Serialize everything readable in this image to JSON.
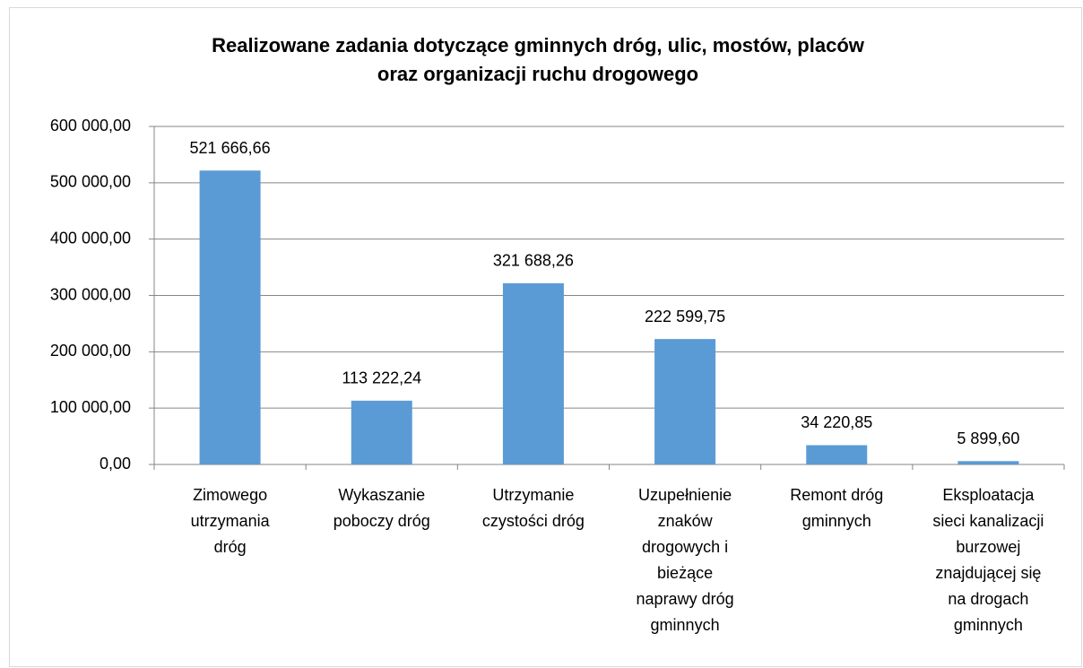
{
  "chart_data": {
    "type": "bar",
    "title": "Realizowane zadania dotyczące gminnych dróg, ulic, mostów, placów\noraz organizacji ruchu drogowego",
    "categories": [
      "Zimowego\nutrzymania\ndróg",
      "Wykaszanie\npoboczy dróg",
      "Utrzymanie\nczystości dróg",
      "Uzupełnienie\nznaków\ndrogowych i\nbieżące\nnaprawy dróg\ngminnych",
      "Remont dróg\ngminnych",
      "Eksploatacja\nsieci kanalizacji\nburzowej\nznajdującej się\nna drogach\ngminnych"
    ],
    "values": [
      521666.66,
      113222.24,
      321688.26,
      222599.75,
      34220.85,
      5899.6
    ],
    "value_labels": [
      "521 666,66",
      "113 222,24",
      "321 688,26",
      "222 599,75",
      "34 220,85",
      "5 899,60"
    ],
    "color": "#5b9bd5",
    "ylim": [
      0,
      600000
    ],
    "yticks": [
      {
        "value": 0,
        "label": "0,00"
      },
      {
        "value": 100000,
        "label": "100 000,00"
      },
      {
        "value": 200000,
        "label": "200 000,00"
      },
      {
        "value": 300000,
        "label": "300 000,00"
      },
      {
        "value": 400000,
        "label": "400 000,00"
      },
      {
        "value": 500000,
        "label": "500 000,00"
      },
      {
        "value": 600000,
        "label": "600 000,00"
      }
    ],
    "grid": true
  }
}
